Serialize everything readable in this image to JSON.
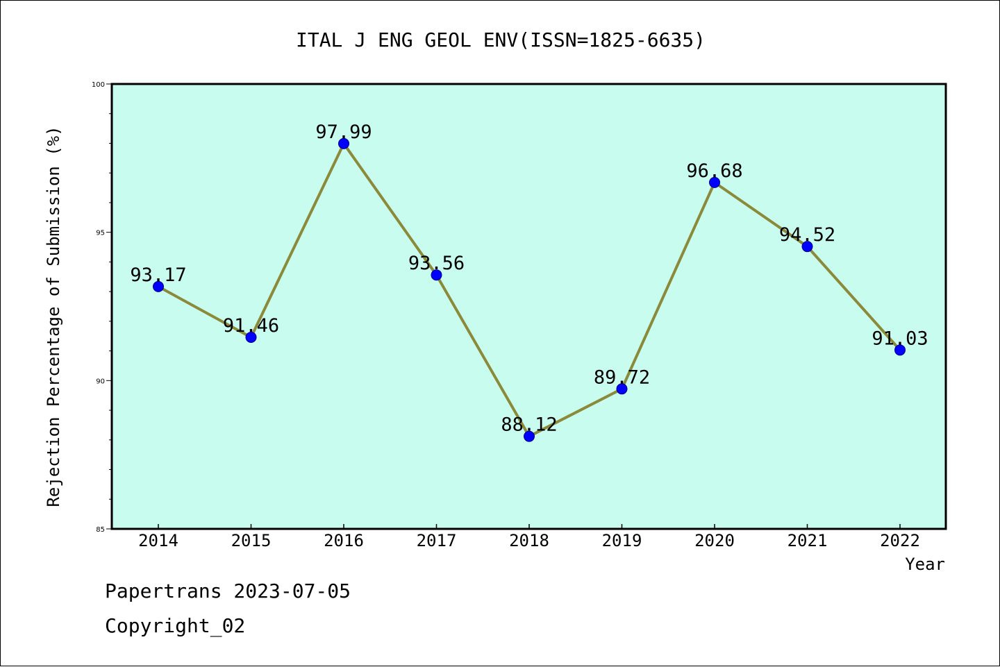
{
  "chart_data": {
    "type": "line",
    "title": "ITAL J ENG GEOL ENV(ISSN=1825-6635)",
    "xlabel": "Year",
    "ylabel": "Rejection Percentage of Submission (%)",
    "categories": [
      "2014",
      "2015",
      "2016",
      "2017",
      "2018",
      "2019",
      "2020",
      "2021",
      "2022"
    ],
    "series": [
      {
        "values": [
          93.17,
          91.46,
          97.99,
          93.56,
          88.12,
          89.72,
          96.68,
          94.52,
          91.03
        ],
        "data_labels": [
          "93.17",
          "91.46",
          "97.99",
          "93.56",
          "88.12",
          "89.72",
          "96.68",
          "94.52",
          "91.03"
        ]
      }
    ],
    "ylim": [
      85,
      100
    ],
    "y_ticks": [
      85,
      90,
      95,
      100
    ],
    "y_tick_labels": [
      "85",
      "90",
      "95",
      "100"
    ],
    "y_minor_step": 1,
    "grid": false,
    "colors": {
      "plot_background": "#c8fcee",
      "line": "#8b8a3a",
      "marker": "#0000ff"
    }
  },
  "footer": {
    "line1": "Papertrans 2023-07-05",
    "line2": "Copyright_02"
  }
}
